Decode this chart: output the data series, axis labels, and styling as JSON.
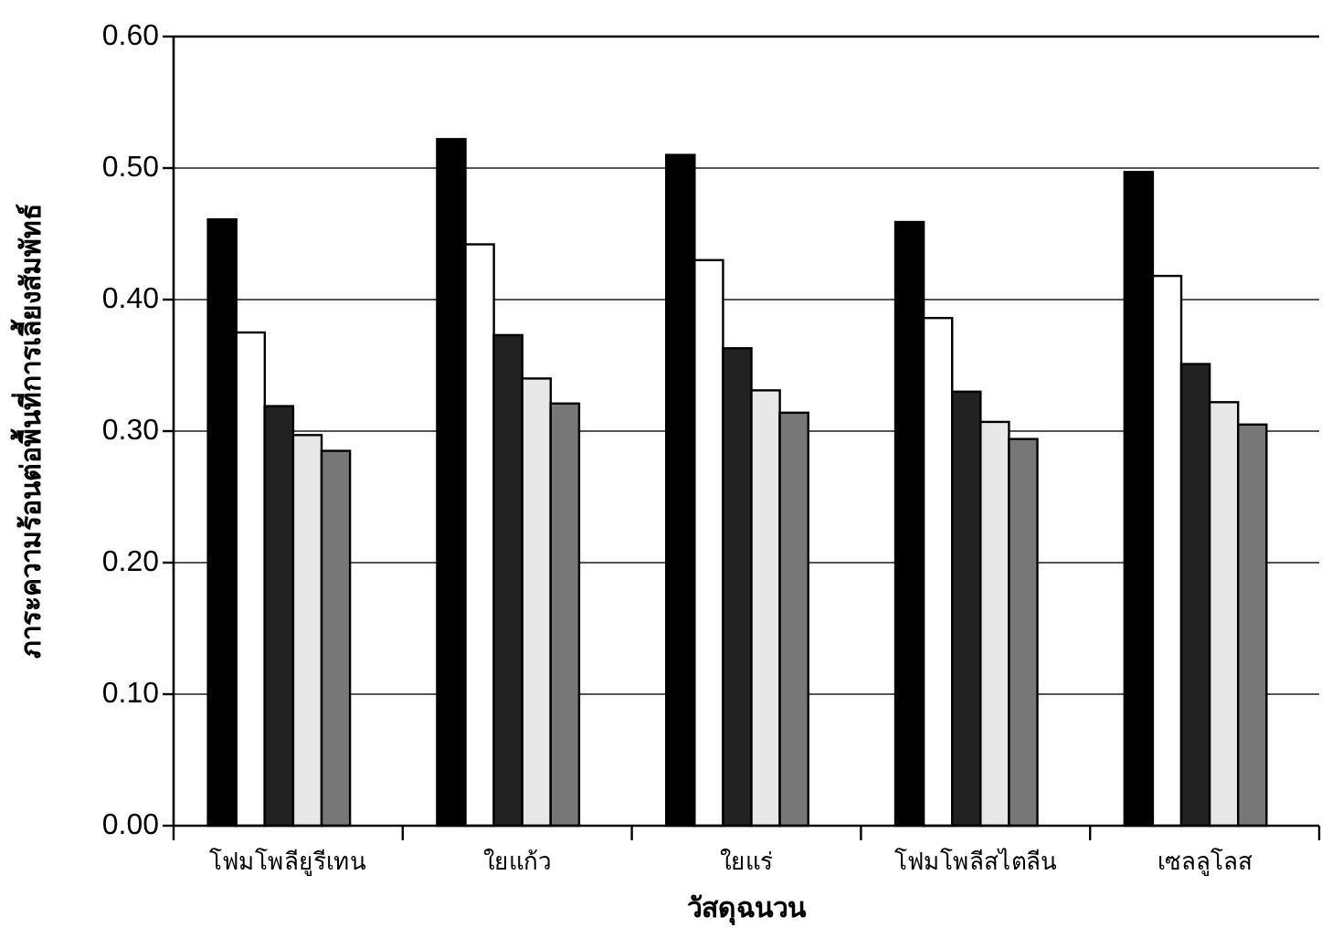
{
  "chart_data": {
    "type": "bar",
    "xlabel": "วัสดุฉนวน",
    "ylabel": "ภาระความร้อนต่อพื้นที่การเลี้ยงสัมพัทธ์",
    "categories": [
      "โฟมโพลียูรีเทน",
      "ใยแก้ว",
      "ใยแร่",
      "โฟมโพลีสไตลีน",
      "เซลลูโลส"
    ],
    "series": [
      {
        "color": "#000000",
        "values": [
          0.461,
          0.522,
          0.51,
          0.459,
          0.497
        ]
      },
      {
        "color": "#ffffff",
        "values": [
          0.375,
          0.442,
          0.43,
          0.386,
          0.418
        ]
      },
      {
        "color": "#222222",
        "values": [
          0.319,
          0.373,
          0.363,
          0.33,
          0.351
        ]
      },
      {
        "color": "#e8e8e8",
        "values": [
          0.297,
          0.34,
          0.331,
          0.307,
          0.322
        ]
      },
      {
        "color": "#777777",
        "values": [
          0.285,
          0.321,
          0.314,
          0.294,
          0.305
        ]
      }
    ],
    "ylim": [
      0,
      0.6
    ],
    "yticks": [
      {
        "value": 0,
        "label": "0.00"
      },
      {
        "value": 0.1,
        "label": "0.10"
      },
      {
        "value": 0.2,
        "label": "0.20"
      },
      {
        "value": 0.3,
        "label": "0.30"
      },
      {
        "value": 0.4,
        "label": "0.40"
      },
      {
        "value": 0.5,
        "label": "0.50"
      },
      {
        "value": 0.6,
        "label": "0.60"
      }
    ],
    "grid": "y"
  }
}
